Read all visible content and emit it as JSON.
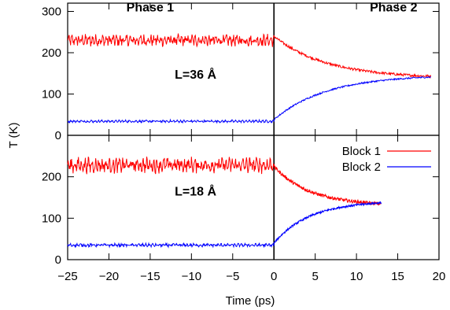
{
  "chart_data": {
    "type": "line",
    "xlabel": "Time (ps)",
    "ylabel": "T (K)",
    "xlim": [
      -25,
      20
    ],
    "xticks": [
      -25,
      -20,
      -15,
      -10,
      -5,
      0,
      5,
      10,
      15,
      20
    ],
    "xtick_labels": [
      "−25",
      "−20",
      "−15",
      "−10",
      "−5",
      "0",
      "5",
      "10",
      "15",
      "20"
    ],
    "legend_position": "top-right of lower panel",
    "grid": false,
    "panels": [
      {
        "id": "top",
        "ylim": [
          0,
          320
        ],
        "yticks": [
          0,
          100,
          200,
          300
        ],
        "annotations": [
          {
            "text": "Phase 1",
            "x": -15,
            "y": 300
          },
          {
            "text": "Phase 2",
            "x": 14.5,
            "y": 300
          },
          {
            "text": "L=36 Å",
            "x": -9.5,
            "y": 137
          }
        ],
        "vline_x": 0,
        "series": [
          {
            "name": "Block 1",
            "color": "#ff0000",
            "phase1_x": [
              -25,
              0
            ],
            "phase1_mean": 230,
            "phase1_amplitude": 14,
            "phase2_x": [
              0,
              19
            ],
            "phase2_start": 240,
            "phase2_end": 143
          },
          {
            "name": "Block 2",
            "color": "#0000ff",
            "phase1_x": [
              -25,
              0
            ],
            "phase1_mean": 34,
            "phase1_amplitude": 3,
            "phase2_x": [
              0,
              19
            ],
            "phase2_start": 38,
            "phase2_end": 141
          }
        ]
      },
      {
        "id": "bottom",
        "ylim": [
          0,
          300
        ],
        "yticks": [
          0,
          100,
          200
        ],
        "annotations": [
          {
            "text": "L=18 Å",
            "x": -9.5,
            "y": 155
          }
        ],
        "vline_x": 0,
        "series": [
          {
            "name": "Block 1",
            "color": "#ff0000",
            "phase1_x": [
              -25,
              0
            ],
            "phase1_mean": 228,
            "phase1_amplitude": 18,
            "phase2_x": [
              0,
              13
            ],
            "phase2_start": 225,
            "phase2_end": 135
          },
          {
            "name": "Block 2",
            "color": "#0000ff",
            "phase1_x": [
              -25,
              0
            ],
            "phase1_mean": 35,
            "phase1_amplitude": 4,
            "phase2_x": [
              0,
              13
            ],
            "phase2_start": 40,
            "phase2_end": 137
          }
        ]
      }
    ],
    "legend": [
      {
        "label": "Block 1",
        "color": "#ff0000"
      },
      {
        "label": "Block 2",
        "color": "#0000ff"
      }
    ]
  }
}
